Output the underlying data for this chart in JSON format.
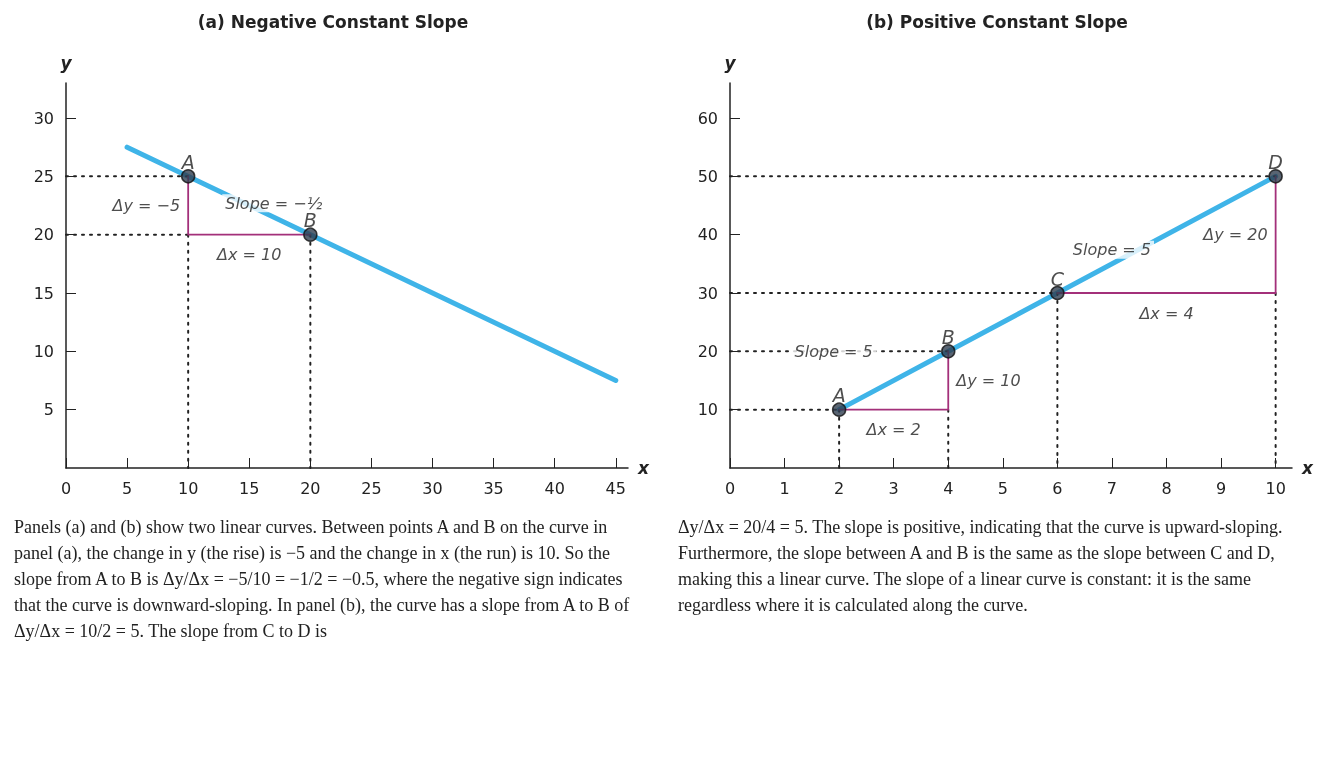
{
  "chart_data": [
    {
      "type": "line",
      "title": "(a) Negative Constant Slope",
      "xlabel": "x",
      "ylabel": "y",
      "xlim": [
        0,
        46
      ],
      "xticks": [
        0,
        5,
        10,
        15,
        20,
        25,
        30,
        35,
        40,
        45
      ],
      "ylim": [
        0,
        33
      ],
      "yticks": [
        5,
        10,
        15,
        20,
        25,
        30
      ],
      "grid": false,
      "series": [
        {
          "color": "#3fb4e8",
          "marker": "none",
          "line_style": "solid",
          "x": [
            5,
            45
          ],
          "values": [
            27.5,
            7.5
          ]
        },
        {
          "color": "#222222",
          "marker": "none",
          "line_style": "dotted",
          "x": [
            0,
            10
          ],
          "values": [
            25,
            25
          ]
        },
        {
          "color": "#222222",
          "marker": "none",
          "line_style": "dotted",
          "x": [
            0,
            10
          ],
          "values": [
            20,
            20
          ]
        },
        {
          "color": "#222222",
          "marker": "none",
          "line_style": "dotted",
          "x": [
            10,
            10
          ],
          "values": [
            20,
            0
          ]
        },
        {
          "color": "#222222",
          "marker": "none",
          "line_style": "dotted",
          "x": [
            20,
            20
          ],
          "values": [
            20,
            0
          ]
        },
        {
          "color": "#a3307a",
          "marker": "none",
          "line_style": "solid",
          "x": [
            10,
            10,
            20
          ],
          "values": [
            25,
            20,
            20
          ]
        },
        {
          "type": "scatter",
          "color": "#2f3d4f",
          "marker": "circle",
          "x": [
            10,
            20
          ],
          "values": [
            25,
            20
          ]
        }
      ],
      "annotations": [
        {
          "text": "A",
          "x": 10,
          "y": 25
        },
        {
          "text": "B",
          "x": 20,
          "y": 20
        },
        {
          "text": "Slope = −½",
          "x": 17,
          "y": 21.5
        },
        {
          "text": "Δy = −5",
          "x": 10,
          "y": 22.5
        },
        {
          "text": "Δx = 10",
          "x": 15,
          "y": 20
        },
        "Panels (a) and (b) show two linear curves. Between points A and B on the curve in panel (a), the change in y (the rise) is −5 and the change in x (the run) is 10. So the slope from A to B is Δy/Δx = −5/10 = −1/2 = −0.5, where the negative sign indicates that the curve is downward-sloping. In panel (b), the curve has a slope from A to B of Δy/Δx = 10/2 = 5. The slope from C to D is"
      ]
    },
    {
      "type": "line",
      "title": "(b) Positive Constant Slope",
      "xlabel": "x",
      "ylabel": "y",
      "xlim": [
        0,
        10.3
      ],
      "xticks": [
        0,
        1,
        2,
        3,
        4,
        5,
        6,
        7,
        8,
        9,
        10
      ],
      "ylim": [
        0,
        66
      ],
      "yticks": [
        10,
        20,
        30,
        40,
        50,
        60
      ],
      "grid": false,
      "series": [
        {
          "color": "#3fb4e8",
          "marker": "none",
          "line_style": "solid",
          "x": [
            2,
            10
          ],
          "values": [
            10,
            50
          ]
        },
        {
          "color": "#222222",
          "marker": "none",
          "line_style": "dotted",
          "x": [
            0,
            2
          ],
          "values": [
            10,
            10
          ]
        },
        {
          "color": "#222222",
          "marker": "none",
          "line_style": "dotted",
          "x": [
            2,
            2
          ],
          "values": [
            10,
            0
          ]
        },
        {
          "color": "#222222",
          "marker": "none",
          "line_style": "dotted",
          "x": [
            0,
            4
          ],
          "values": [
            20,
            20
          ]
        },
        {
          "color": "#222222",
          "marker": "none",
          "line_style": "dotted",
          "x": [
            4,
            4
          ],
          "values": [
            10,
            0
          ]
        },
        {
          "color": "#222222",
          "marker": "none",
          "line_style": "dotted",
          "x": [
            0,
            6
          ],
          "values": [
            30,
            30
          ]
        },
        {
          "color": "#222222",
          "marker": "none",
          "line_style": "dotted",
          "x": [
            6,
            6
          ],
          "values": [
            30,
            0
          ]
        },
        {
          "color": "#222222",
          "marker": "none",
          "line_style": "dotted",
          "x": [
            0,
            10
          ],
          "values": [
            50,
            50
          ]
        },
        {
          "color": "#222222",
          "marker": "none",
          "line_style": "dotted",
          "x": [
            10,
            10
          ],
          "values": [
            30,
            0
          ]
        },
        {
          "color": "#a3307a",
          "marker": "none",
          "line_style": "solid",
          "x": [
            2,
            4,
            4
          ],
          "values": [
            10,
            10,
            20
          ]
        },
        {
          "color": "#a3307a",
          "marker": "none",
          "line_style": "solid",
          "x": [
            6,
            10,
            10
          ],
          "values": [
            30,
            30,
            50
          ]
        },
        {
          "type": "scatter",
          "color": "#2f3d4f",
          "marker": "circle",
          "x": [
            2,
            4,
            6,
            10
          ],
          "values": [
            10,
            20,
            30,
            50
          ]
        }
      ],
      "annotations": [
        {
          "text": "A",
          "x": 2,
          "y": 10
        },
        {
          "text": "B",
          "x": 4,
          "y": 20
        },
        {
          "text": "C",
          "x": 6,
          "y": 30
        },
        {
          "text": "D",
          "x": 10,
          "y": 50
        },
        {
          "text": "Slope = 5",
          "x": 7,
          "y": 35
        },
        {
          "text": "Slope = 5",
          "x": 1.9,
          "y": 20
        },
        {
          "text": "Δy = 10",
          "x": 4,
          "y": 15
        },
        {
          "text": "Δx = 2",
          "x": 3,
          "y": 10
        },
        {
          "text": "Δx = 4",
          "x": 8,
          "y": 30
        },
        {
          "text": "Δy = 20",
          "x": 10,
          "y": 40
        },
        "Δy/Δx = 20/4 = 5. The slope is positive, indicating that the curve is upward-sloping. Furthermore, the slope between A and B is the same as the slope between C and D, making this a linear curve. The slope of a linear curve is constant: it is the same regardless where it is calculated along the curve."
      ]
    }
  ]
}
